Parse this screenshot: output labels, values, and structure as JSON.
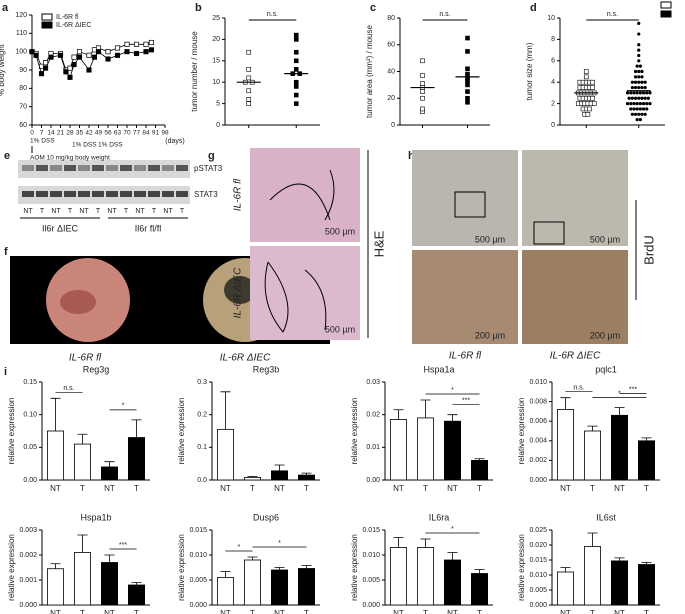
{
  "chart_data": [
    {
      "type": "line",
      "label": "a",
      "ylabel": "% body weight",
      "xlabel": "(days)",
      "dss_label": "1% DSS",
      "aom_label": "AOM 10 mg/kg body weight",
      "x": [
        0,
        3,
        7,
        10,
        14,
        21,
        25,
        28,
        31,
        35,
        42,
        46,
        49,
        56,
        63,
        70,
        77,
        84,
        88
      ],
      "series": [
        {
          "name": "IL-6R fl",
          "marker": "open",
          "values": [
            100,
            99,
            92,
            94,
            99,
            99,
            90,
            91,
            97,
            100,
            98,
            101,
            102,
            100,
            102,
            104,
            104,
            104,
            105
          ]
        },
        {
          "name": "IL-6R ΔIEC",
          "marker": "filled",
          "values": [
            100,
            98,
            88,
            91,
            97,
            98,
            89,
            86,
            93,
            97,
            90,
            97,
            100,
            96,
            98,
            100,
            99,
            100,
            101
          ]
        }
      ],
      "xlim": [
        0,
        98
      ],
      "xticks": [
        0,
        7,
        14,
        21,
        28,
        35,
        42,
        49,
        56,
        63,
        70,
        77,
        84,
        91,
        98
      ],
      "ylim": [
        60,
        120
      ],
      "yticks": [
        60,
        70,
        80,
        90,
        100,
        110,
        120
      ]
    },
    {
      "type": "strip",
      "label": "b",
      "ylabel": "tumor number / mouse",
      "annotation": "n.s.",
      "groups": [
        {
          "marker": "open-square",
          "values": [
            5,
            6,
            8,
            10,
            10,
            11,
            13,
            17
          ],
          "mean": 10
        },
        {
          "marker": "filled-square",
          "values": [
            5,
            7,
            9,
            10,
            12,
            12,
            13,
            15,
            17,
            20,
            21
          ],
          "mean": 12
        }
      ],
      "ylim": [
        0,
        25
      ],
      "yticks": [
        0,
        5,
        10,
        15,
        20,
        25
      ]
    },
    {
      "type": "strip",
      "label": "c",
      "ylabel": "tumor area (mm²) / mouse",
      "annotation": "n.s.",
      "groups": [
        {
          "marker": "open-square",
          "values": [
            10,
            12,
            20,
            25,
            28,
            31,
            37,
            48
          ],
          "mean": 28
        },
        {
          "marker": "filled-square",
          "values": [
            17,
            20,
            25,
            30,
            33,
            35,
            38,
            42,
            55,
            65
          ],
          "mean": 36
        }
      ],
      "ylim": [
        0,
        80
      ],
      "yticks": [
        0,
        20,
        40,
        60,
        80
      ]
    },
    {
      "type": "strip",
      "label": "d",
      "ylabel": "tumor size (mm)",
      "annotation": "n.s.",
      "legend": "top-right",
      "groups": [
        {
          "marker": "open-square",
          "values": [
            1,
            1,
            1.5,
            1.5,
            1.5,
            2,
            2,
            2,
            2,
            2,
            2,
            2.5,
            2.5,
            2.5,
            2.5,
            2.5,
            3,
            3,
            3,
            3,
            3,
            3,
            3.5,
            3.5,
            3.5,
            3.5,
            3.5,
            4,
            4,
            4,
            4,
            4,
            4.5,
            5
          ],
          "mean": 3
        },
        {
          "marker": "filled-circle",
          "values": [
            0.5,
            0.5,
            1,
            1,
            1,
            1,
            1,
            1.5,
            1.5,
            1.5,
            1.5,
            1.5,
            1.5,
            2,
            2,
            2,
            2,
            2,
            2,
            2,
            2,
            2.5,
            2.5,
            2.5,
            2.5,
            2.5,
            2.5,
            2.5,
            3,
            3,
            3,
            3,
            3,
            3,
            3,
            3,
            3.5,
            3.5,
            3.5,
            3.5,
            3.5,
            4,
            4,
            4,
            4,
            4,
            4.5,
            4.5,
            4.5,
            5,
            5,
            5,
            5.5,
            5.5,
            6,
            6.5,
            7,
            7.5,
            8.5,
            9.5
          ],
          "mean": 3.2
        }
      ],
      "ylim": [
        0,
        10
      ],
      "yticks": [
        0,
        2,
        4,
        6,
        8,
        10
      ]
    },
    {
      "type": "bar",
      "title": "Reg3g",
      "ylabel": "relative expression",
      "categories": [
        "NT",
        "T",
        "NT",
        "T"
      ],
      "colors": [
        "#ffffff",
        "#ffffff",
        "#000000",
        "#000000"
      ],
      "values": [
        0.075,
        0.055,
        0.02,
        0.065
      ],
      "errors": [
        0.05,
        0.015,
        0.008,
        0.027
      ],
      "annotations": [
        {
          "text": "n.s.",
          "groups": [
            0,
            1
          ]
        },
        {
          "text": "*",
          "groups": [
            2,
            3
          ]
        }
      ],
      "ylim": [
        0,
        0.15
      ],
      "yticks": [
        {
          "value": 0,
          "label": "0.00"
        },
        0.05,
        {
          "value": 0.1,
          "label": "0.10"
        },
        0.15
      ]
    },
    {
      "type": "bar",
      "title": "Reg3b",
      "ylabel": "relative expression",
      "categories": [
        "NT",
        "T",
        "NT",
        "T"
      ],
      "colors": [
        "#ffffff",
        "#ffffff",
        "#000000",
        "#000000"
      ],
      "values": [
        0.155,
        0.008,
        0.028,
        0.015
      ],
      "errors": [
        0.115,
        0.003,
        0.018,
        0.006
      ],
      "annotations": [],
      "ylim": [
        0,
        0.3
      ],
      "yticks": [
        {
          "value": 0,
          "label": "0.0"
        },
        0.1,
        0.2,
        0.3
      ]
    },
    {
      "type": "bar",
      "title": "Hspa1a",
      "ylabel": "relative expression",
      "categories": [
        "NT",
        "T",
        "NT",
        "T"
      ],
      "colors": [
        "#ffffff",
        "#ffffff",
        "#000000",
        "#000000"
      ],
      "values": [
        0.0185,
        0.019,
        0.018,
        0.006
      ],
      "errors": [
        0.003,
        0.0055,
        0.002,
        0.0005
      ],
      "annotations": [
        {
          "text": "*",
          "groups": [
            1,
            3
          ]
        },
        {
          "text": "***",
          "groups": [
            2,
            3
          ]
        }
      ],
      "ylim": [
        0,
        0.03
      ],
      "yticks": [
        {
          "value": 0,
          "label": "0.00"
        },
        0.01,
        0.02,
        0.03
      ]
    },
    {
      "type": "bar",
      "title": "pqlc1",
      "ylabel": "relative expression",
      "categories": [
        "NT",
        "T",
        "NT",
        "T"
      ],
      "colors": [
        "#ffffff",
        "#ffffff",
        "#000000",
        "#000000"
      ],
      "values": [
        0.0072,
        0.005,
        0.0066,
        0.004
      ],
      "errors": [
        0.0012,
        0.0005,
        0.0008,
        0.0003
      ],
      "annotations": [
        {
          "text": "n.s.",
          "groups": [
            0,
            1
          ]
        },
        {
          "text": "*",
          "groups": [
            1,
            3
          ]
        },
        {
          "text": "***",
          "groups": [
            2,
            3
          ]
        }
      ],
      "ylim": [
        0,
        0.01
      ],
      "yticks": [
        {
          "value": 0,
          "label": "0.000"
        },
        0.002,
        0.004,
        0.006,
        0.008,
        {
          "value": 0.01,
          "label": "0.010"
        }
      ]
    },
    {
      "type": "bar",
      "title": "Hspa1b",
      "ylabel": "relative expression",
      "categories": [
        "NT",
        "T",
        "NT",
        "T"
      ],
      "colors": [
        "#ffffff",
        "#ffffff",
        "#000000",
        "#000000"
      ],
      "values": [
        0.00145,
        0.0021,
        0.0017,
        0.0008
      ],
      "errors": [
        0.0002,
        0.0007,
        0.0003,
        0.0001
      ],
      "annotations": [
        {
          "text": "***",
          "groups": [
            2,
            3
          ]
        }
      ],
      "ylim": [
        0,
        0.003
      ],
      "yticks": [
        {
          "value": 0,
          "label": "0.000"
        },
        0.001,
        0.002,
        0.003
      ]
    },
    {
      "type": "bar",
      "title": "Dusp6",
      "ylabel": "relative expression",
      "categories": [
        "NT",
        "T",
        "NT",
        "T"
      ],
      "colors": [
        "#ffffff",
        "#ffffff",
        "#000000",
        "#000000"
      ],
      "values": [
        0.0055,
        0.009,
        0.007,
        0.0073
      ],
      "errors": [
        0.0012,
        0.0006,
        0.0005,
        0.0006
      ],
      "annotations": [
        {
          "text": "*",
          "groups": [
            0,
            1
          ]
        },
        {
          "text": "*",
          "groups": [
            1,
            3
          ]
        }
      ],
      "ylim": [
        0,
        0.015
      ],
      "yticks": [
        {
          "value": 0,
          "label": "0.000"
        },
        0.005,
        {
          "value": 0.01,
          "label": "0.010"
        },
        0.015
      ]
    },
    {
      "type": "bar",
      "title": "IL6ra",
      "ylabel": "relative expression",
      "categories": [
        "NT",
        "T",
        "NT",
        "T"
      ],
      "colors": [
        "#ffffff",
        "#ffffff",
        "#000000",
        "#000000"
      ],
      "values": [
        0.0115,
        0.0115,
        0.009,
        0.0063
      ],
      "errors": [
        0.002,
        0.0017,
        0.0015,
        0.0008
      ],
      "annotations": [
        {
          "text": "*",
          "groups": [
            1,
            3
          ]
        }
      ],
      "ylim": [
        0,
        0.015
      ],
      "yticks": [
        {
          "value": 0,
          "label": "0.000"
        },
        0.005,
        {
          "value": 0.01,
          "label": "0.010"
        },
        0.015
      ]
    },
    {
      "type": "bar",
      "title": "IL6st",
      "ylabel": "relative expression",
      "categories": [
        "NT",
        "T",
        "NT",
        "T"
      ],
      "colors": [
        "#ffffff",
        "#ffffff",
        "#000000",
        "#000000"
      ],
      "values": [
        0.011,
        0.0195,
        0.0147,
        0.0135
      ],
      "errors": [
        0.0015,
        0.0045,
        0.001,
        0.0007
      ],
      "annotations": [],
      "ylim": [
        0,
        0.025
      ],
      "yticks": [
        {
          "value": 0,
          "label": "0.000"
        },
        0.005,
        {
          "value": 0.01,
          "label": "0.010"
        },
        0.015,
        {
          "value": 0.02,
          "label": "0.020"
        },
        0.025
      ]
    }
  ],
  "panel_i_label": "i",
  "images": {
    "e": {
      "label": "e",
      "rows": [
        "pSTAT3",
        "STAT3"
      ],
      "lanes": [
        "NT",
        "T",
        "NT",
        "T",
        "NT",
        "T",
        "NT",
        "T",
        "NT",
        "T",
        "NT",
        "T"
      ],
      "groups": [
        "Il6r ΔIEC",
        "Il6r fl/fl"
      ]
    },
    "f": {
      "label": "f",
      "captions": [
        "IL-6R fl",
        "IL-6R ΔIEC"
      ]
    },
    "g": {
      "label": "g",
      "rows": [
        "IL-6R fl",
        "IL-6R ΔIEC"
      ],
      "stain": "H&E",
      "scale": "500 µm"
    },
    "h": {
      "label": "h",
      "captions": [
        "IL-6R fl",
        "IL-6R ΔIEC"
      ],
      "stain": "BrdU",
      "scale_low": "500 µm",
      "scale_high": "200 µm"
    }
  }
}
